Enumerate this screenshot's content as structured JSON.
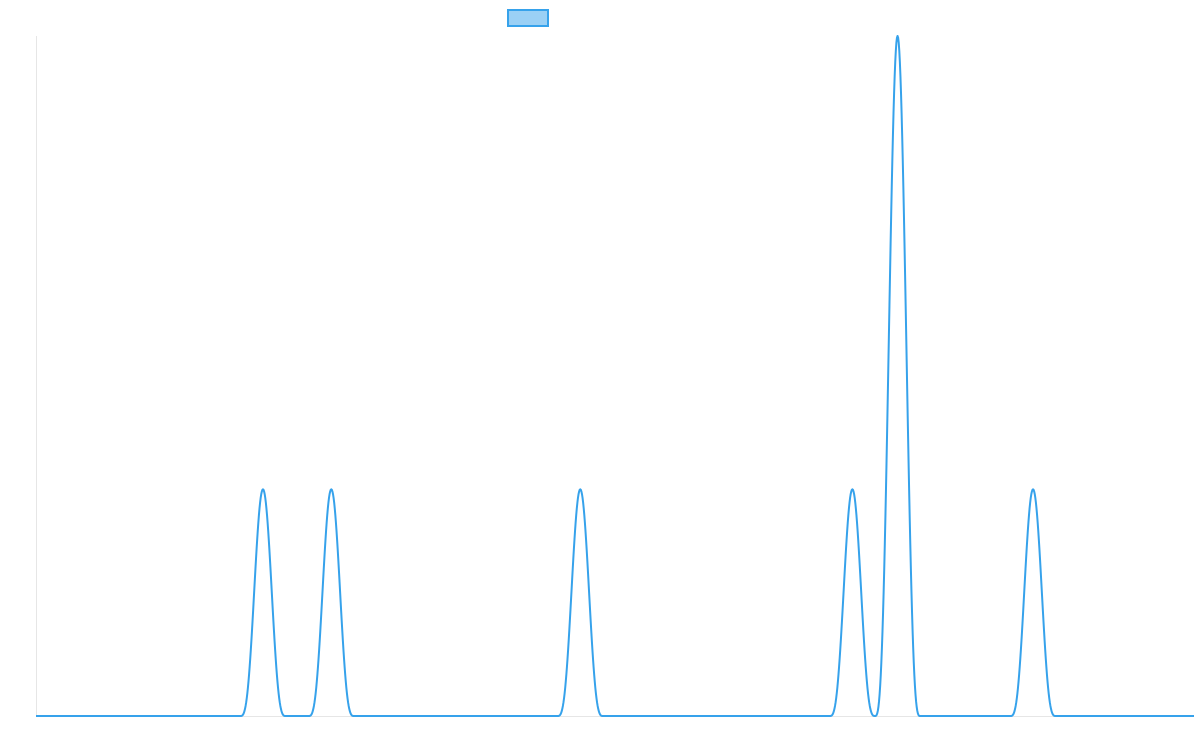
{
  "chart_data": {
    "type": "line",
    "title": "",
    "xlabel": "",
    "ylabel": "",
    "grid": false,
    "legend": {
      "placement": "top-center",
      "entries": [
        {
          "label": "",
          "color": "#36a2eb",
          "fill": "#9ad0f5"
        }
      ]
    },
    "xlim": [
      0,
      1000
    ],
    "ylim": [
      0,
      3
    ],
    "series": [
      {
        "color": "#36a2eb",
        "peaks": [
          {
            "center": 196,
            "height": 1,
            "half_width": 19.5
          },
          {
            "center": 255,
            "height": 1,
            "half_width": 19.5
          },
          {
            "center": 470,
            "height": 1,
            "half_width": 19.5
          },
          {
            "center": 705,
            "height": 1,
            "half_width": 19.5
          },
          {
            "center": 744,
            "height": 3,
            "half_width": 19.5
          },
          {
            "center": 861,
            "height": 1,
            "half_width": 19.5
          }
        ]
      }
    ]
  }
}
